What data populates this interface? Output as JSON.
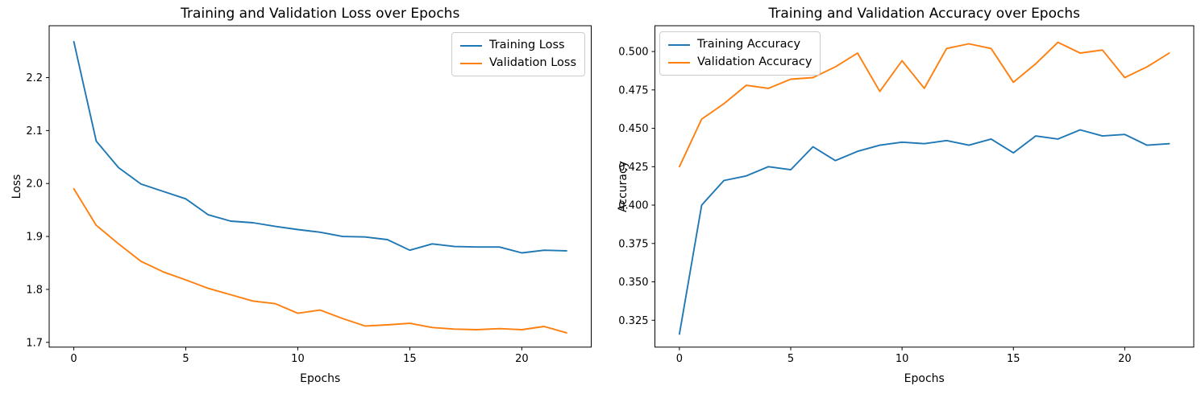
{
  "figure": {
    "background": "#ffffff",
    "accent_colors": {
      "training": "#1f77b4",
      "validation": "#ff7f0e"
    }
  },
  "chart_data": [
    {
      "id": "loss",
      "type": "line",
      "title": "Training and Validation Loss over Epochs",
      "xlabel": "Epochs",
      "ylabel": "Loss",
      "x": [
        0,
        1,
        2,
        3,
        4,
        5,
        6,
        7,
        8,
        9,
        10,
        11,
        12,
        13,
        14,
        15,
        16,
        17,
        18,
        19,
        20,
        21,
        22
      ],
      "series": [
        {
          "name": "Training Loss",
          "color": "#1f77b4",
          "values": [
            2.268,
            2.08,
            2.03,
            1.999,
            1.985,
            1.971,
            1.941,
            1.929,
            1.926,
            1.919,
            1.913,
            1.908,
            1.9,
            1.899,
            1.894,
            1.874,
            1.886,
            1.881,
            1.88,
            1.88,
            1.869,
            1.874,
            1.873
          ]
        },
        {
          "name": "Validation Loss",
          "color": "#ff7f0e",
          "values": [
            1.99,
            1.921,
            1.886,
            1.853,
            1.833,
            1.818,
            1.802,
            1.79,
            1.778,
            1.773,
            1.755,
            1.761,
            1.745,
            1.731,
            1.733,
            1.736,
            1.728,
            1.725,
            1.724,
            1.726,
            1.724,
            1.73,
            1.718
          ]
        }
      ],
      "xlim": [
        -1.1,
        23.1
      ],
      "ylim": [
        1.691,
        2.298
      ],
      "xticks": [
        0,
        5,
        10,
        15,
        20
      ],
      "xticklabels": [
        "0",
        "5",
        "10",
        "15",
        "20"
      ],
      "yticks": [
        1.7,
        1.8,
        1.9,
        2.0,
        2.1,
        2.2
      ],
      "yticklabels": [
        "1.7",
        "1.8",
        "1.9",
        "2.0",
        "2.1",
        "2.2"
      ],
      "grid": false,
      "legend_position": "upper-right"
    },
    {
      "id": "accuracy",
      "type": "line",
      "title": "Training and Validation Accuracy over Epochs",
      "xlabel": "Epochs",
      "ylabel": "Accuracy",
      "x": [
        0,
        1,
        2,
        3,
        4,
        5,
        6,
        7,
        8,
        9,
        10,
        11,
        12,
        13,
        14,
        15,
        16,
        17,
        18,
        19,
        20,
        21,
        22
      ],
      "series": [
        {
          "name": "Training Accuracy",
          "color": "#1f77b4",
          "values": [
            0.316,
            0.4,
            0.416,
            0.419,
            0.425,
            0.423,
            0.438,
            0.429,
            0.435,
            0.439,
            0.441,
            0.44,
            0.442,
            0.439,
            0.443,
            0.434,
            0.445,
            0.443,
            0.449,
            0.445,
            0.446,
            0.439,
            0.44
          ]
        },
        {
          "name": "Validation Accuracy",
          "color": "#ff7f0e",
          "values": [
            0.425,
            0.456,
            0.466,
            0.478,
            0.476,
            0.482,
            0.483,
            0.49,
            0.499,
            0.474,
            0.494,
            0.476,
            0.502,
            0.505,
            0.502,
            0.48,
            0.492,
            0.506,
            0.499,
            0.501,
            0.483,
            0.49,
            0.499
          ]
        }
      ],
      "xlim": [
        -1.1,
        23.1
      ],
      "ylim": [
        0.3075,
        0.5168
      ],
      "xticks": [
        0,
        5,
        10,
        15,
        20
      ],
      "xticklabels": [
        "0",
        "5",
        "10",
        "15",
        "20"
      ],
      "yticks": [
        0.325,
        0.35,
        0.375,
        0.4,
        0.425,
        0.45,
        0.475,
        0.5
      ],
      "yticklabels": [
        "0.325",
        "0.350",
        "0.375",
        "0.400",
        "0.425",
        "0.450",
        "0.475",
        "0.500"
      ],
      "grid": false,
      "legend_position": "upper-left"
    }
  ]
}
